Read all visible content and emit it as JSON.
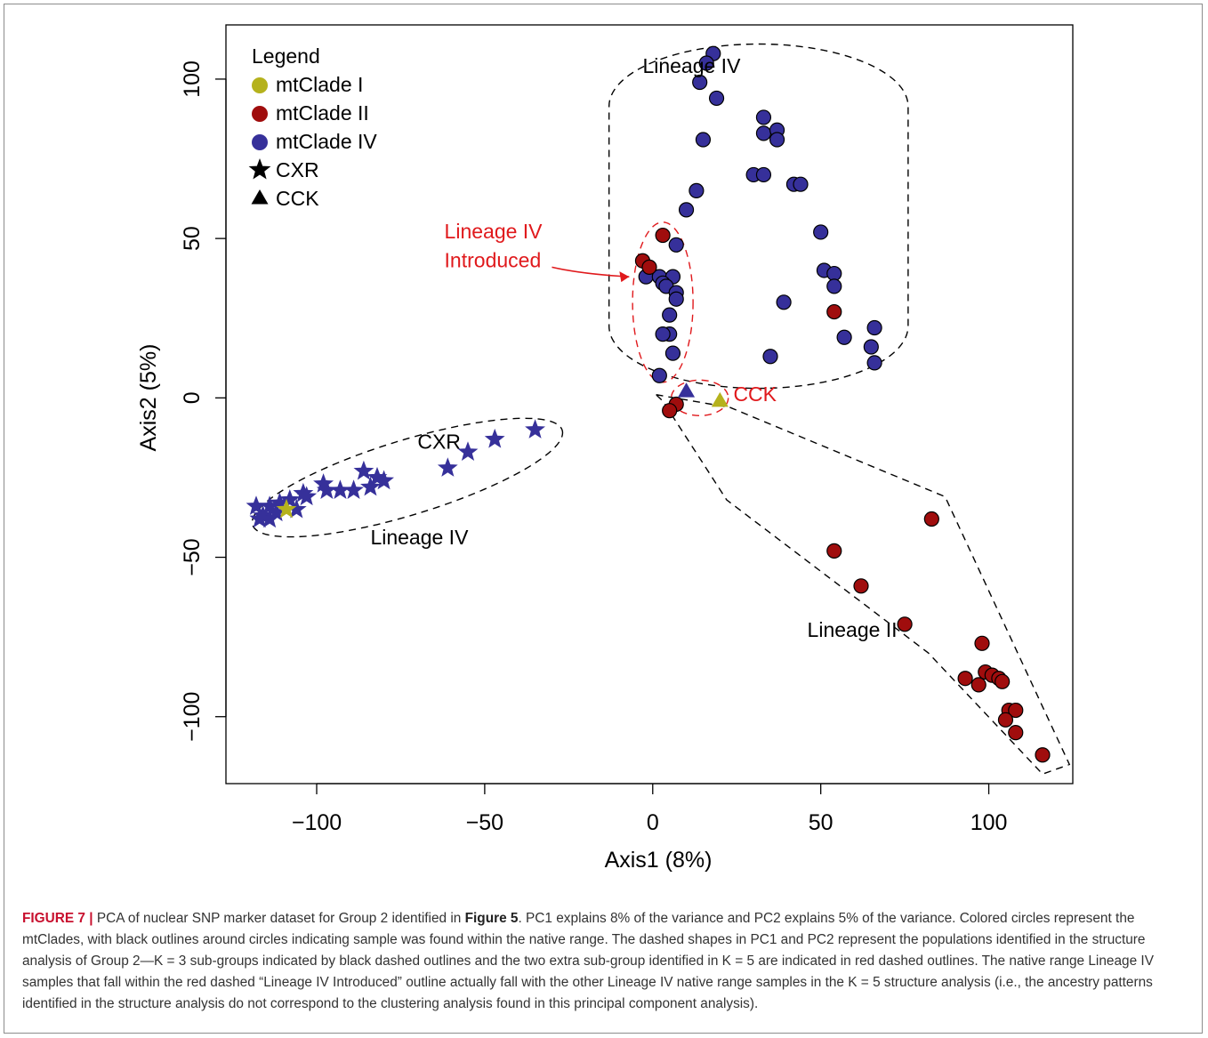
{
  "chart_data": {
    "type": "scatter",
    "title": "",
    "xlabel": "Axis1 (8%)",
    "ylabel": "Axis2 (5%)",
    "xlim": [
      -127,
      125
    ],
    "ylim": [
      -121,
      117
    ],
    "xticks": [
      -100,
      -50,
      0,
      50,
      100
    ],
    "yticks": [
      -100,
      -50,
      0,
      50,
      100
    ],
    "x_tick_labels": [
      "−100",
      "−50",
      "0",
      "50",
      "100"
    ],
    "y_tick_labels": [
      "−100",
      "−50",
      "0",
      "50",
      "100"
    ],
    "grid": false,
    "legend": {
      "title": "Legend",
      "position": "top-left",
      "entries": [
        {
          "label": "mtClade I",
          "marker": "circle",
          "color": "#b5b21d"
        },
        {
          "label": "mtClade II",
          "marker": "circle",
          "color": "#a00d0d"
        },
        {
          "label": "mtClade IV",
          "marker": "circle",
          "color": "#36309a"
        },
        {
          "label": "CXR",
          "marker": "star",
          "color": "#000000"
        },
        {
          "label": "CCK",
          "marker": "triangle",
          "color": "#000000"
        }
      ]
    },
    "series": [
      {
        "name": "mtClade IV",
        "marker": "circle",
        "color": "#36309a",
        "points": [
          {
            "x": 18,
            "y": 108
          },
          {
            "x": 16,
            "y": 105
          },
          {
            "x": 14,
            "y": 99
          },
          {
            "x": 19,
            "y": 94
          },
          {
            "x": 33,
            "y": 88
          },
          {
            "x": 33,
            "y": 83
          },
          {
            "x": 37,
            "y": 84
          },
          {
            "x": 37,
            "y": 81
          },
          {
            "x": 15,
            "y": 81
          },
          {
            "x": 30,
            "y": 70
          },
          {
            "x": 33,
            "y": 70
          },
          {
            "x": 42,
            "y": 67
          },
          {
            "x": 44,
            "y": 67
          },
          {
            "x": 13,
            "y": 65
          },
          {
            "x": 10,
            "y": 59
          },
          {
            "x": 50,
            "y": 52
          },
          {
            "x": 7,
            "y": 48
          },
          {
            "x": 51,
            "y": 40
          },
          {
            "x": 54,
            "y": 39
          },
          {
            "x": 54,
            "y": 35
          },
          {
            "x": 39,
            "y": 30
          },
          {
            "x": 57,
            "y": 19
          },
          {
            "x": 66,
            "y": 22
          },
          {
            "x": 65,
            "y": 16
          },
          {
            "x": 66,
            "y": 11
          },
          {
            "x": 35,
            "y": 13
          },
          {
            "x": -2,
            "y": 38
          },
          {
            "x": 2,
            "y": 38
          },
          {
            "x": 6,
            "y": 38
          },
          {
            "x": 3,
            "y": 36
          },
          {
            "x": 4,
            "y": 35
          },
          {
            "x": 7,
            "y": 33
          },
          {
            "x": 7,
            "y": 31
          },
          {
            "x": 5,
            "y": 26
          },
          {
            "x": 5,
            "y": 20
          },
          {
            "x": 3,
            "y": 20
          },
          {
            "x": 6,
            "y": 14
          },
          {
            "x": 2,
            "y": 7
          }
        ]
      },
      {
        "name": "mtClade II",
        "marker": "circle",
        "color": "#a00d0d",
        "points": [
          {
            "x": 3,
            "y": 51
          },
          {
            "x": -3,
            "y": 43
          },
          {
            "x": -1,
            "y": 41
          },
          {
            "x": 54,
            "y": 27
          },
          {
            "x": 7,
            "y": -2
          },
          {
            "x": 5,
            "y": -4
          },
          {
            "x": 83,
            "y": -38
          },
          {
            "x": 54,
            "y": -48
          },
          {
            "x": 62,
            "y": -59
          },
          {
            "x": 75,
            "y": -71
          },
          {
            "x": 98,
            "y": -77
          },
          {
            "x": 93,
            "y": -88
          },
          {
            "x": 97,
            "y": -90
          },
          {
            "x": 99,
            "y": -86
          },
          {
            "x": 101,
            "y": -87
          },
          {
            "x": 103,
            "y": -88
          },
          {
            "x": 104,
            "y": -89
          },
          {
            "x": 106,
            "y": -98
          },
          {
            "x": 108,
            "y": -98
          },
          {
            "x": 105,
            "y": -101
          },
          {
            "x": 108,
            "y": -105
          },
          {
            "x": 116,
            "y": -112
          }
        ]
      },
      {
        "name": "CXR",
        "marker": "star",
        "color": "#36309a",
        "points": [
          {
            "x": -35,
            "y": -10
          },
          {
            "x": -47,
            "y": -13
          },
          {
            "x": -55,
            "y": -17
          },
          {
            "x": -61,
            "y": -22
          },
          {
            "x": -86,
            "y": -23
          },
          {
            "x": -82,
            "y": -25
          },
          {
            "x": -80,
            "y": -26
          },
          {
            "x": -84,
            "y": -28
          },
          {
            "x": -89,
            "y": -29
          },
          {
            "x": -93,
            "y": -29
          },
          {
            "x": -98,
            "y": -27
          },
          {
            "x": -97,
            "y": -29
          },
          {
            "x": -104,
            "y": -30
          },
          {
            "x": -103,
            "y": -31
          },
          {
            "x": -108,
            "y": -32
          },
          {
            "x": -111,
            "y": -33
          },
          {
            "x": -114,
            "y": -34
          },
          {
            "x": -118,
            "y": -34
          },
          {
            "x": -106,
            "y": -35
          },
          {
            "x": -112,
            "y": -36
          },
          {
            "x": -116,
            "y": -37
          },
          {
            "x": -114,
            "y": -38
          },
          {
            "x": -117,
            "y": -38
          }
        ]
      },
      {
        "name": "CXR",
        "marker": "star",
        "color": "#b5b21d",
        "points": [
          {
            "x": -109,
            "y": -35
          }
        ]
      },
      {
        "name": "CCK",
        "marker": "triangle",
        "color": "#36309a",
        "points": [
          {
            "x": 10,
            "y": 2
          }
        ]
      },
      {
        "name": "CCK",
        "marker": "triangle",
        "color": "#b5b21d",
        "points": [
          {
            "x": 20,
            "y": -1
          }
        ]
      }
    ],
    "annotations": [
      {
        "text": "Lineage IV",
        "x": -3,
        "y": 102,
        "color": "#000000"
      },
      {
        "text": "CXR",
        "x": -70,
        "y": -16,
        "color": "#000000"
      },
      {
        "text": "Lineage IV",
        "x": -84,
        "y": -46,
        "color": "#000000"
      },
      {
        "text": "Lineage II",
        "x": 46,
        "y": -75,
        "color": "#000000"
      },
      {
        "text": "CCK",
        "x": 24,
        "y": -1,
        "color": "#e0191c"
      },
      {
        "text": "Lineage IV",
        "x": -62,
        "y": 50,
        "color": "#e0191c"
      },
      {
        "text": "Introduced",
        "x": -62,
        "y": 41,
        "color": "#e0191c"
      }
    ],
    "outlines": [
      {
        "style": "black-dashed",
        "shape": "rounded-box",
        "x_range": [
          -13,
          76
        ],
        "y_range": [
          3,
          111
        ],
        "label": "Lineage IV"
      },
      {
        "style": "black-dashed",
        "shape": "ellipse",
        "center": [
          -73,
          -25
        ],
        "label": "Lineage IV (CXR)"
      },
      {
        "style": "black-dashed",
        "shape": "polygon",
        "vertices": [
          [
            1,
            1
          ],
          [
            23,
            -3
          ],
          [
            87,
            -31
          ],
          [
            124,
            -115
          ],
          [
            116,
            -118
          ],
          [
            82,
            -80
          ],
          [
            22,
            -32
          ],
          [
            3,
            -1
          ]
        ],
        "label": "Lineage II"
      },
      {
        "style": "red-dashed",
        "shape": "ellipse",
        "center": [
          3,
          30
        ],
        "label": "Lineage IV Introduced"
      },
      {
        "style": "red-dashed",
        "shape": "ellipse",
        "center": [
          14,
          0
        ],
        "label": "CCK"
      }
    ]
  },
  "caption": {
    "label": "FIGURE 7 |",
    "part1": " PCA of nuclear SNP marker dataset for Group 2 identified in ",
    "ref": "Figure 5",
    "part2": ". PC1 explains 8% of the variance and PC2 explains 5% of the variance. Colored circles represent the mtClades, with black outlines around circles indicating sample was found within the native range. The dashed shapes in PC1 and PC2 represent the populations identified in the structure analysis of Group 2—K = 3 sub-groups indicated by black dashed outlines and the two extra sub-group identified in K = 5 are indicated in red dashed outlines. The native range Lineage IV samples that fall within the red dashed “Lineage IV Introduced” outline actually fall with the other Lineage IV native range samples in the K = 5 structure analysis (i.e., the ancestry patterns identified in the structure analysis do not correspond to the clustering analysis found in this principal component analysis)."
  }
}
